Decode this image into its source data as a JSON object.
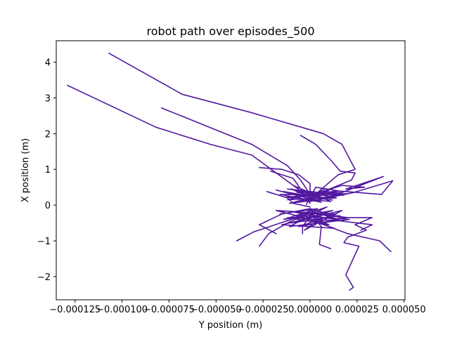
{
  "chart_data": {
    "type": "line",
    "title": "robot path over episodes_500",
    "xlabel": "Y position (m)",
    "ylabel": "X position (m)",
    "xlim": [
      -0.000135,
      5.05e-05
    ],
    "ylim": [
      -2.65,
      4.6
    ],
    "grid": false,
    "legend": "none",
    "colors": {
      "series": "#5218a0",
      "axes": "#000000",
      "background": "#ffffff"
    },
    "xticks": [
      {
        "value": -0.000125,
        "label": "−0.000125"
      },
      {
        "value": -0.0001,
        "label": "−0.000100"
      },
      {
        "value": -7.5e-05,
        "label": "−0.000075"
      },
      {
        "value": -5e-05,
        "label": "−0.000050"
      },
      {
        "value": -2.5e-05,
        "label": "−0.000025"
      },
      {
        "value": 0,
        "label": "0.000000"
      },
      {
        "value": 2.5e-05,
        "label": "0.000025"
      },
      {
        "value": 5e-05,
        "label": "0.000050"
      }
    ],
    "yticks": [
      {
        "value": -2,
        "label": "−2"
      },
      {
        "value": -1,
        "label": "−1"
      },
      {
        "value": 0,
        "label": "0"
      },
      {
        "value": 1,
        "label": "1"
      },
      {
        "value": 2,
        "label": "2"
      },
      {
        "value": 3,
        "label": "3"
      },
      {
        "value": 4,
        "label": "4"
      }
    ],
    "series": [
      {
        "points": [
          [
            -0.000107,
            4.25
          ],
          [
            -6.8e-05,
            3.1
          ],
          [
            -3.2e-05,
            2.6
          ],
          [
            7e-06,
            2.0
          ],
          [
            1.7e-05,
            1.7
          ],
          [
            2.4e-05,
            1.0
          ],
          [
            1.5e-05,
            0.85
          ],
          [
            5e-06,
            0.4
          ],
          [
            0.0,
            0.1
          ]
        ]
      },
      {
        "points": [
          [
            -0.000129,
            3.35
          ],
          [
            -8.2e-05,
            2.18
          ],
          [
            -5.3e-05,
            1.7
          ],
          [
            -3.1e-05,
            1.4
          ],
          [
            -1.8e-05,
            0.9
          ],
          [
            -5e-06,
            0.4
          ],
          [
            0.0,
            0.05
          ]
        ]
      },
      {
        "points": [
          [
            -7.9e-05,
            2.72
          ],
          [
            -3.1e-05,
            1.7
          ],
          [
            -1.2e-05,
            1.1
          ],
          [
            -5e-06,
            0.7
          ],
          [
            0.0,
            0.3
          ]
        ]
      },
      {
        "points": [
          [
            -5e-06,
            1.95
          ],
          [
            3e-06,
            1.7
          ],
          [
            1.2e-05,
            1.2
          ],
          [
            1.6e-05,
            0.95
          ],
          [
            2.4e-05,
            0.9
          ],
          [
            2.2e-05,
            0.7
          ],
          [
            8e-06,
            0.4
          ],
          [
            0.0,
            0.1
          ]
        ]
      },
      {
        "points": [
          [
            -2.7e-05,
            1.05
          ],
          [
            -1.5e-05,
            1.0
          ],
          [
            -6e-06,
            0.85
          ],
          [
            0.0,
            0.6
          ],
          [
            0.0,
            0.2
          ]
        ]
      },
      {
        "points": [
          [
            -2.1e-05,
            0.95
          ],
          [
            -9e-06,
            0.75
          ],
          [
            -5e-06,
            0.45
          ],
          [
            3e-06,
            0.3
          ],
          [
            1.4e-05,
            0.4
          ],
          [
            3.8e-05,
            0.3
          ],
          [
            4.4e-05,
            0.68
          ],
          [
            2.3e-05,
            0.35
          ],
          [
            0.0,
            0.1
          ]
        ]
      },
      {
        "points": [
          [
            -1.2e-05,
            0.45
          ],
          [
            5e-06,
            0.35
          ],
          [
            1.7e-05,
            0.55
          ],
          [
            2.9e-05,
            0.5
          ],
          [
            1.9e-05,
            0.45
          ],
          [
            3.9e-05,
            0.8
          ],
          [
            1.2e-05,
            0.25
          ]
        ]
      },
      {
        "points": [
          [
            -1.8e-05,
            0.42
          ],
          [
            4e-06,
            0.12
          ],
          [
            -1.4e-05,
            0.38
          ],
          [
            1.2e-05,
            0.14
          ],
          [
            -1e-05,
            0.45
          ],
          [
            6e-06,
            0.08
          ],
          [
            -1.6e-05,
            0.3
          ],
          [
            1.8e-05,
            0.28
          ],
          [
            -8e-06,
            0.42
          ],
          [
            1.4e-05,
            0.2
          ],
          [
            -1.2e-05,
            0.15
          ],
          [
            1e-05,
            0.4
          ],
          [
            -4e-06,
            0.25
          ],
          [
            2e-05,
            0.32
          ],
          [
            -6e-06,
            0.1
          ],
          [
            8e-06,
            0.45
          ]
        ]
      },
      {
        "points": [
          [
            -9e-06,
            0.55
          ],
          [
            1.1e-05,
            0.1
          ],
          [
            -1.3e-05,
            0.22
          ],
          [
            1.7e-05,
            0.35
          ],
          [
            -7e-06,
            0.36
          ],
          [
            9e-06,
            0.18
          ],
          [
            -1.1e-05,
            0.05
          ],
          [
            1.5e-05,
            0.4
          ],
          [
            3e-06,
            0.5
          ],
          [
            -2e-06,
            0.02
          ]
        ]
      },
      {
        "points": [
          [
            -2.3e-05,
            0.38
          ],
          [
            -1.2e-05,
            0.2
          ],
          [
            -9e-06,
            0.05
          ],
          [
            0.0,
            -0.05
          ]
        ]
      },
      {
        "points": [
          [
            -1.6e-05,
            -0.25
          ],
          [
            4e-06,
            -0.1
          ],
          [
            -1.4e-05,
            -0.4
          ],
          [
            1.2e-05,
            -0.15
          ],
          [
            -1e-05,
            -0.5
          ],
          [
            1.6e-05,
            -0.3
          ],
          [
            -8e-06,
            -0.2
          ],
          [
            1.8e-05,
            -0.45
          ],
          [
            -1.2e-05,
            -0.35
          ],
          [
            1e-05,
            -0.55
          ],
          [
            -4e-06,
            -0.2
          ],
          [
            2e-05,
            -0.35
          ],
          [
            -6e-06,
            -0.6
          ],
          [
            1.4e-05,
            -0.25
          ],
          [
            -1.8e-05,
            -0.15
          ],
          [
            8e-06,
            -0.5
          ]
        ]
      },
      {
        "points": [
          [
            -1.3e-05,
            -0.45
          ],
          [
            9e-06,
            -0.05
          ],
          [
            -1.1e-05,
            -0.6
          ],
          [
            2.1e-05,
            -0.4
          ],
          [
            -7e-06,
            -0.3
          ],
          [
            1.3e-05,
            -0.65
          ],
          [
            -1.5e-05,
            -0.55
          ],
          [
            1.7e-05,
            -0.15
          ],
          [
            -3e-06,
            -0.7
          ],
          [
            5e-06,
            -0.4
          ]
        ]
      },
      {
        "points": [
          [
            0.0,
            -0.1
          ],
          [
            1.6e-05,
            -0.35
          ],
          [
            3.3e-05,
            -0.35
          ],
          [
            2.4e-05,
            -0.55
          ],
          [
            3e-05,
            -0.7
          ],
          [
            2e-05,
            -0.9
          ],
          [
            1.8e-05,
            -1.05
          ],
          [
            2.6e-05,
            -1.15
          ],
          [
            1.9e-05,
            -1.95
          ],
          [
            2.3e-05,
            -2.3
          ],
          [
            2.1e-05,
            -2.38
          ]
        ]
      },
      {
        "points": [
          [
            0.0,
            -0.2
          ],
          [
            1e-05,
            -0.6
          ],
          [
            2e-05,
            -0.8
          ],
          [
            3.7e-05,
            -1.0
          ],
          [
            4.3e-05,
            -1.3
          ]
        ]
      },
      {
        "points": [
          [
            0.0,
            -0.15
          ],
          [
            -1e-05,
            -0.4
          ],
          [
            -3e-05,
            -0.75
          ],
          [
            -3.9e-05,
            -1.0
          ]
        ]
      },
      {
        "points": [
          [
            0.0,
            -0.2
          ],
          [
            -1.2e-05,
            -0.5
          ],
          [
            -2.2e-05,
            -0.8
          ],
          [
            -2.7e-05,
            -1.15
          ]
        ]
      },
      {
        "points": [
          [
            0.0,
            -0.3
          ],
          [
            -4e-06,
            -0.6
          ],
          [
            -4e-06,
            -0.8
          ]
        ]
      },
      {
        "points": [
          [
            0.0,
            -0.2
          ],
          [
            6e-06,
            -0.6
          ],
          [
            5e-06,
            -1.1
          ],
          [
            1.1e-05,
            -1.22
          ]
        ]
      },
      {
        "points": [
          [
            0.0,
            -0.1
          ],
          [
            -1.5e-05,
            -0.25
          ],
          [
            -2.7e-05,
            -0.55
          ],
          [
            -1.8e-05,
            -0.8
          ]
        ]
      },
      {
        "points": [
          [
            0.0,
            -0.15
          ],
          [
            1.7e-05,
            -0.45
          ],
          [
            3.3e-05,
            -0.55
          ],
          [
            2.7e-05,
            -0.7
          ]
        ]
      }
    ]
  }
}
